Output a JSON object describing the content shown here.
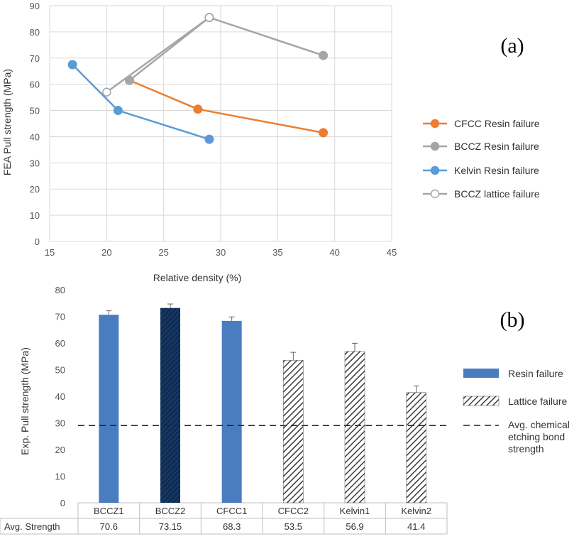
{
  "chart_data": [
    {
      "type": "line",
      "panel_label": "(a)",
      "xlabel": "Relative density (%)",
      "ylabel": "FEA Pull strength (MPa)",
      "xlim": [
        15,
        45
      ],
      "ylim": [
        0,
        90
      ],
      "xticks": [
        15,
        20,
        25,
        30,
        35,
        40,
        45
      ],
      "yticks": [
        0,
        10,
        20,
        30,
        40,
        50,
        60,
        70,
        80,
        90
      ],
      "grid": true,
      "legend_position": "right",
      "series": [
        {
          "name": "CFCC Resin failure",
          "color": "#ED7D31",
          "marker": "filled-circle",
          "x": [
            22,
            28,
            39
          ],
          "y": [
            61.5,
            50.5,
            41.5
          ]
        },
        {
          "name": "BCCZ Resin failure",
          "color": "#A5A5A5",
          "marker": "filled-circle",
          "x": [
            22,
            29,
            39
          ],
          "y": [
            61.5,
            85.5,
            71
          ]
        },
        {
          "name": "Kelvin Resin failure",
          "color": "#5B9BD5",
          "marker": "filled-circle",
          "x": [
            17,
            21,
            29
          ],
          "y": [
            67.5,
            50,
            39
          ]
        },
        {
          "name": "BCCZ lattice failure",
          "color": "#A5A5A5",
          "marker": "open-circle",
          "x": [
            20,
            29
          ],
          "y": [
            57,
            85.5
          ]
        }
      ]
    },
    {
      "type": "bar",
      "panel_label": "(b)",
      "ylabel": "Exp. Pull strength (MPa)",
      "ylim": [
        0,
        80
      ],
      "yticks": [
        0,
        10,
        20,
        30,
        40,
        50,
        60,
        70,
        80
      ],
      "grid": false,
      "legend_position": "right",
      "categories": [
        "BCCZ1",
        "BCCZ2",
        "CFCC1",
        "CFCC2",
        "Kelvin1",
        "Kelvin2"
      ],
      "values": [
        70.6,
        73.15,
        68.3,
        53.5,
        56.9,
        41.4
      ],
      "errors": [
        1.5,
        1.5,
        1.5,
        3,
        3,
        2.5
      ],
      "failure_mode": [
        "resin",
        "resin",
        "resin",
        "lattice",
        "lattice",
        "lattice"
      ],
      "bar_colors": [
        "#4A7CC0",
        "#0F2C52",
        "#4A7CC0",
        "hatch",
        "hatch",
        "hatch"
      ],
      "reference_line": {
        "value": 29,
        "label": "Avg. chemical etching bond strength",
        "style": "dashed"
      },
      "legend": [
        {
          "label": "Resin failure",
          "swatch": "solid",
          "color": "#4A7CC0"
        },
        {
          "label": "Lattice failure",
          "swatch": "hatch"
        },
        {
          "label": "Avg. chemical etching bond strength",
          "swatch": "dashed-line"
        }
      ],
      "table": {
        "row_label": "Avg. Strength",
        "values": [
          "70.6",
          "73.15",
          "68.3",
          "53.5",
          "56.9",
          "41.4"
        ]
      }
    }
  ]
}
